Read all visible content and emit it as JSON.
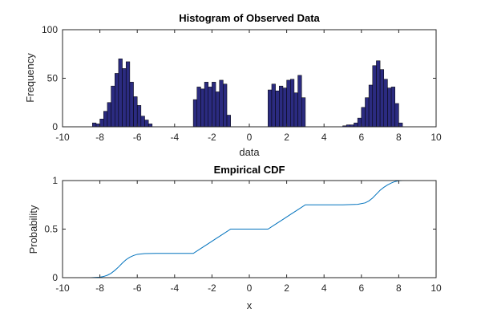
{
  "figure": {
    "background": "#ffffff"
  },
  "chart_data": [
    {
      "type": "bar",
      "title": "Histogram of Observed Data",
      "xlabel": "data",
      "ylabel": "Frequency",
      "xlim": [
        -10,
        10
      ],
      "ylim": [
        0,
        100
      ],
      "xticks": [
        -10,
        -8,
        -6,
        -4,
        -2,
        0,
        2,
        4,
        6,
        8,
        10
      ],
      "yticks": [
        0,
        50,
        100
      ],
      "xtick_labels": [
        "-10",
        "-8",
        "-6",
        "-4",
        "-2",
        "0",
        "2",
        "4",
        "6",
        "8",
        "10"
      ],
      "ytick_labels": [
        "0",
        "50",
        "100"
      ],
      "bin_width": 0.2,
      "bar_color": "#2b2b80",
      "bar_edge": "#000000",
      "grid": false,
      "bins": [
        {
          "x0": -8.4,
          "x1": -8.2,
          "value": 4
        },
        {
          "x0": -8.2,
          "x1": -8.0,
          "value": 3
        },
        {
          "x0": -8.0,
          "x1": -7.8,
          "value": 8
        },
        {
          "x0": -7.8,
          "x1": -7.6,
          "value": 16
        },
        {
          "x0": -7.6,
          "x1": -7.4,
          "value": 25
        },
        {
          "x0": -7.4,
          "x1": -7.2,
          "value": 42
        },
        {
          "x0": -7.2,
          "x1": -7.0,
          "value": 55
        },
        {
          "x0": -7.0,
          "x1": -6.8,
          "value": 70
        },
        {
          "x0": -6.8,
          "x1": -6.6,
          "value": 60
        },
        {
          "x0": -6.6,
          "x1": -6.4,
          "value": 67
        },
        {
          "x0": -6.4,
          "x1": -6.2,
          "value": 46
        },
        {
          "x0": -6.2,
          "x1": -6.0,
          "value": 31
        },
        {
          "x0": -6.0,
          "x1": -5.8,
          "value": 22
        },
        {
          "x0": -5.8,
          "x1": -5.6,
          "value": 11
        },
        {
          "x0": -5.6,
          "x1": -5.4,
          "value": 7
        },
        {
          "x0": -5.4,
          "x1": -5.2,
          "value": 3
        },
        {
          "x0": -3.0,
          "x1": -2.8,
          "value": 28
        },
        {
          "x0": -2.8,
          "x1": -2.6,
          "value": 41
        },
        {
          "x0": -2.6,
          "x1": -2.4,
          "value": 39
        },
        {
          "x0": -2.4,
          "x1": -2.2,
          "value": 46
        },
        {
          "x0": -2.2,
          "x1": -2.0,
          "value": 41
        },
        {
          "x0": -2.0,
          "x1": -1.8,
          "value": 46
        },
        {
          "x0": -1.8,
          "x1": -1.6,
          "value": 36
        },
        {
          "x0": -1.6,
          "x1": -1.4,
          "value": 48
        },
        {
          "x0": -1.4,
          "x1": -1.2,
          "value": 44
        },
        {
          "x0": -1.2,
          "x1": -1.0,
          "value": 12
        },
        {
          "x0": 1.0,
          "x1": 1.2,
          "value": 38
        },
        {
          "x0": 1.2,
          "x1": 1.4,
          "value": 44
        },
        {
          "x0": 1.4,
          "x1": 1.6,
          "value": 37
        },
        {
          "x0": 1.6,
          "x1": 1.8,
          "value": 42
        },
        {
          "x0": 1.8,
          "x1": 2.0,
          "value": 40
        },
        {
          "x0": 2.0,
          "x1": 2.2,
          "value": 48
        },
        {
          "x0": 2.2,
          "x1": 2.4,
          "value": 49
        },
        {
          "x0": 2.4,
          "x1": 2.6,
          "value": 35
        },
        {
          "x0": 2.6,
          "x1": 2.8,
          "value": 53
        },
        {
          "x0": 2.8,
          "x1": 3.0,
          "value": 30
        },
        {
          "x0": 5.0,
          "x1": 5.2,
          "value": 1
        },
        {
          "x0": 5.2,
          "x1": 5.4,
          "value": 2
        },
        {
          "x0": 5.4,
          "x1": 5.6,
          "value": 2
        },
        {
          "x0": 5.6,
          "x1": 5.8,
          "value": 4
        },
        {
          "x0": 5.8,
          "x1": 6.0,
          "value": 9
        },
        {
          "x0": 6.0,
          "x1": 6.2,
          "value": 20
        },
        {
          "x0": 6.2,
          "x1": 6.4,
          "value": 30
        },
        {
          "x0": 6.4,
          "x1": 6.6,
          "value": 43
        },
        {
          "x0": 6.6,
          "x1": 6.8,
          "value": 63
        },
        {
          "x0": 6.8,
          "x1": 7.0,
          "value": 68
        },
        {
          "x0": 7.0,
          "x1": 7.2,
          "value": 59
        },
        {
          "x0": 7.2,
          "x1": 7.4,
          "value": 49
        },
        {
          "x0": 7.4,
          "x1": 7.6,
          "value": 40
        },
        {
          "x0": 7.6,
          "x1": 7.8,
          "value": 41
        },
        {
          "x0": 7.8,
          "x1": 8.0,
          "value": 24
        },
        {
          "x0": 8.0,
          "x1": 8.2,
          "value": 4
        }
      ]
    },
    {
      "type": "line",
      "title": "Empirical CDF",
      "xlabel": "x",
      "ylabel": "Probability",
      "xlim": [
        -10,
        10
      ],
      "ylim": [
        0,
        1
      ],
      "xticks": [
        -10,
        -8,
        -6,
        -4,
        -2,
        0,
        2,
        4,
        6,
        8,
        10
      ],
      "yticks": [
        0,
        0.5,
        1
      ],
      "xtick_labels": [
        "-10",
        "-8",
        "-6",
        "-4",
        "-2",
        "0",
        "2",
        "4",
        "6",
        "8",
        "10"
      ],
      "ytick_labels": [
        "0",
        "0.5",
        "1"
      ],
      "line_color": "#0072bd",
      "grid": false,
      "series": [
        {
          "name": "Empirical CDF",
          "x": [
            -9.2,
            -8.5,
            -8.0,
            -7.8,
            -7.6,
            -7.4,
            -7.2,
            -7.0,
            -6.8,
            -6.6,
            -6.4,
            -6.2,
            -6.0,
            -5.6,
            -5.0,
            -3.0,
            -2.6,
            -2.2,
            -1.8,
            -1.4,
            -1.0,
            1.0,
            1.4,
            1.8,
            2.2,
            2.6,
            3.0,
            5.0,
            5.8,
            6.2,
            6.4,
            6.6,
            6.8,
            7.0,
            7.2,
            7.4,
            7.6,
            7.8,
            8.0,
            8.2,
            9.2
          ],
          "y": [
            0.0,
            0.0,
            0.005,
            0.012,
            0.025,
            0.045,
            0.075,
            0.11,
            0.15,
            0.185,
            0.21,
            0.228,
            0.24,
            0.248,
            0.25,
            0.25,
            0.3,
            0.35,
            0.4,
            0.45,
            0.5,
            0.5,
            0.55,
            0.6,
            0.65,
            0.7,
            0.75,
            0.75,
            0.755,
            0.77,
            0.79,
            0.82,
            0.86,
            0.9,
            0.93,
            0.955,
            0.975,
            0.99,
            0.998,
            1.0,
            1.0
          ]
        }
      ]
    }
  ]
}
